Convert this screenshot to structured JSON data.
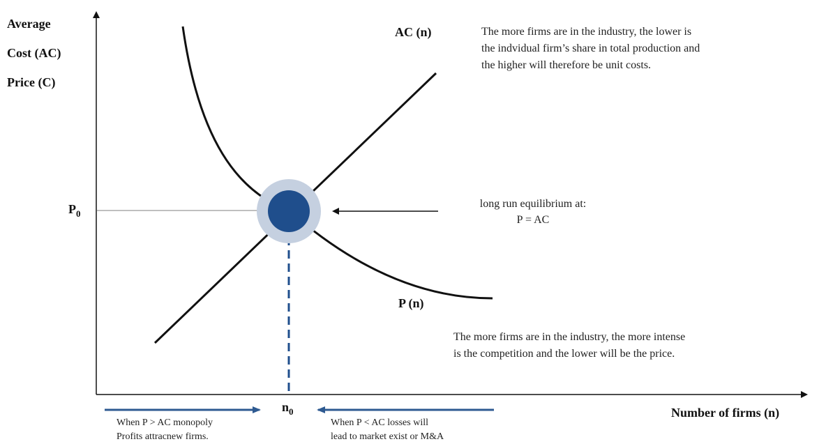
{
  "y_axis_label": [
    "Average",
    "Cost (AC)",
    "Price (C)"
  ],
  "x_axis_label": "Number of firms  (n)",
  "p0_label": "P",
  "p0_sub": "0",
  "n0_label": "n",
  "n0_sub": "0",
  "curves": {
    "ac": "AC (n)",
    "p": "P (n)"
  },
  "notes": {
    "ac_note": [
      "The more firms are in the industry, the lower is",
      "the indvidual firm’s  share in total production and",
      "the higher will therefore be unit costs."
    ],
    "p_note": [
      "The more firms are in the industry, the more intense",
      "is  the competition and the lower will be the price."
    ],
    "equilibrium": [
      "long run equilibrium at:",
      "P = AC"
    ]
  },
  "arrows": {
    "left": [
      "When P > AC  monopoly",
      "Profits attracnew firms."
    ],
    "right": [
      "When P < AC  losses will",
      "lead to market exist or M&A"
    ]
  },
  "colors": {
    "axis": "#111111",
    "curve": "#111111",
    "equilibrium_dot": "#1f4e8c",
    "equilibrium_halo": "#c5d0e0",
    "arrow": "#2e5a91"
  }
}
